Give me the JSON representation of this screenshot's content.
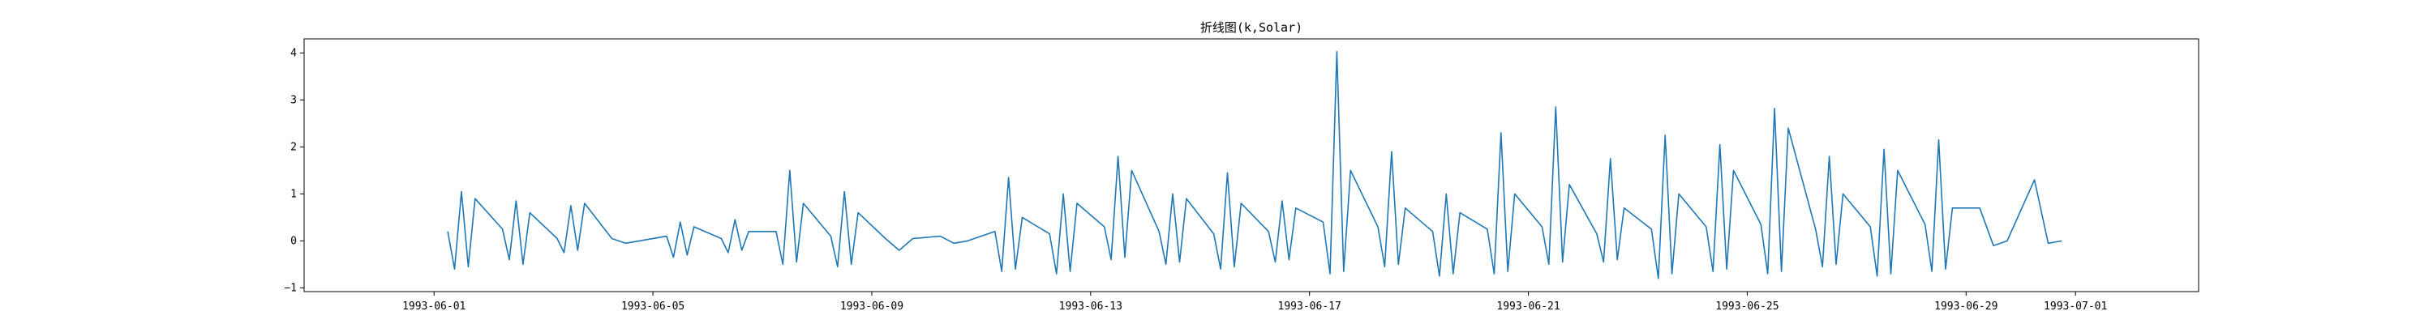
{
  "chart_data": {
    "type": "line",
    "title": "折线图(k,Solar)",
    "xlabel": "",
    "ylabel": "",
    "xlim": [
      "1993-05-29T15:00",
      "1993-07-03T06:00"
    ],
    "ylim": [
      -1.08,
      4.3
    ],
    "grid": false,
    "line_color": "#1f77b4",
    "x_ticks": [
      "1993-06-01",
      "1993-06-05",
      "1993-06-09",
      "1993-06-13",
      "1993-06-17",
      "1993-06-21",
      "1993-06-25",
      "1993-06-29",
      "1993-07-01"
    ],
    "x_tick_labels": [
      "1993-06-01",
      "1993-06-05",
      "1993-06-09",
      "1993-06-13",
      "1993-06-17",
      "1993-06-21",
      "1993-06-25",
      "1993-06-29",
      "1993-07-01"
    ],
    "y_ticks": [
      -1,
      0,
      1,
      2,
      3,
      4
    ],
    "y_tick_labels": [
      "−1",
      "0",
      "1",
      "2",
      "3",
      "4"
    ],
    "series": [
      {
        "x": [
          "1993-06-01T06:00",
          "1993-06-01T09:00",
          "1993-06-01T12:00",
          "1993-06-01T15:00",
          "1993-06-01T18:00",
          "1993-06-02T06:00",
          "1993-06-02T09:00",
          "1993-06-02T12:00",
          "1993-06-02T15:00",
          "1993-06-02T18:00",
          "1993-06-03T06:00",
          "1993-06-03T09:00",
          "1993-06-03T12:00",
          "1993-06-03T15:00",
          "1993-06-03T18:00",
          "1993-06-04T06:00",
          "1993-06-04T12:00",
          "1993-06-04T18:00",
          "1993-06-05T06:00",
          "1993-06-05T09:00",
          "1993-06-05T12:00",
          "1993-06-05T15:00",
          "1993-06-05T18:00",
          "1993-06-06T06:00",
          "1993-06-06T09:00",
          "1993-06-06T12:00",
          "1993-06-06T15:00",
          "1993-06-06T18:00",
          "1993-06-07T06:00",
          "1993-06-07T09:00",
          "1993-06-07T12:00",
          "1993-06-07T15:00",
          "1993-06-07T18:00",
          "1993-06-08T06:00",
          "1993-06-08T09:00",
          "1993-06-08T12:00",
          "1993-06-08T15:00",
          "1993-06-08T18:00",
          "1993-06-09T06:00",
          "1993-06-09T12:00",
          "1993-06-09T18:00",
          "1993-06-10T06:00",
          "1993-06-10T12:00",
          "1993-06-10T18:00",
          "1993-06-11T06:00",
          "1993-06-11T09:00",
          "1993-06-11T12:00",
          "1993-06-11T15:00",
          "1993-06-11T18:00",
          "1993-06-12T06:00",
          "1993-06-12T09:00",
          "1993-06-12T12:00",
          "1993-06-12T15:00",
          "1993-06-12T18:00",
          "1993-06-13T06:00",
          "1993-06-13T09:00",
          "1993-06-13T12:00",
          "1993-06-13T15:00",
          "1993-06-13T18:00",
          "1993-06-14T06:00",
          "1993-06-14T09:00",
          "1993-06-14T12:00",
          "1993-06-14T15:00",
          "1993-06-14T18:00",
          "1993-06-15T06:00",
          "1993-06-15T09:00",
          "1993-06-15T12:00",
          "1993-06-15T15:00",
          "1993-06-15T18:00",
          "1993-06-16T06:00",
          "1993-06-16T09:00",
          "1993-06-16T12:00",
          "1993-06-16T15:00",
          "1993-06-16T18:00",
          "1993-06-17T06:00",
          "1993-06-17T09:00",
          "1993-06-17T12:00",
          "1993-06-17T15:00",
          "1993-06-17T18:00",
          "1993-06-18T06:00",
          "1993-06-18T09:00",
          "1993-06-18T12:00",
          "1993-06-18T15:00",
          "1993-06-18T18:00",
          "1993-06-19T06:00",
          "1993-06-19T09:00",
          "1993-06-19T12:00",
          "1993-06-19T15:00",
          "1993-06-19T18:00",
          "1993-06-20T06:00",
          "1993-06-20T09:00",
          "1993-06-20T12:00",
          "1993-06-20T15:00",
          "1993-06-20T18:00",
          "1993-06-21T06:00",
          "1993-06-21T09:00",
          "1993-06-21T12:00",
          "1993-06-21T15:00",
          "1993-06-21T18:00",
          "1993-06-22T06:00",
          "1993-06-22T09:00",
          "1993-06-22T12:00",
          "1993-06-22T15:00",
          "1993-06-22T18:00",
          "1993-06-23T06:00",
          "1993-06-23T09:00",
          "1993-06-23T12:00",
          "1993-06-23T15:00",
          "1993-06-23T18:00",
          "1993-06-24T06:00",
          "1993-06-24T09:00",
          "1993-06-24T12:00",
          "1993-06-24T15:00",
          "1993-06-24T18:00",
          "1993-06-25T06:00",
          "1993-06-25T09:00",
          "1993-06-25T12:00",
          "1993-06-25T15:00",
          "1993-06-25T18:00",
          "1993-06-26T06:00",
          "1993-06-26T09:00",
          "1993-06-26T12:00",
          "1993-06-26T15:00",
          "1993-06-26T18:00",
          "1993-06-27T06:00",
          "1993-06-27T09:00",
          "1993-06-27T12:00",
          "1993-06-27T15:00",
          "1993-06-27T18:00",
          "1993-06-28T06:00",
          "1993-06-28T09:00",
          "1993-06-28T12:00",
          "1993-06-28T15:00",
          "1993-06-28T18:00",
          "1993-06-29T06:00",
          "1993-06-29T12:00",
          "1993-06-29T18:00",
          "1993-06-30T06:00",
          "1993-06-30T12:00",
          "1993-06-30T18:00"
        ],
        "y": [
          0.2,
          -0.6,
          1.05,
          -0.55,
          0.9,
          0.25,
          -0.4,
          0.85,
          -0.5,
          0.6,
          0.05,
          -0.25,
          0.75,
          -0.2,
          0.8,
          0.05,
          -0.05,
          0.0,
          0.1,
          -0.35,
          0.4,
          -0.3,
          0.3,
          0.05,
          -0.25,
          0.45,
          -0.2,
          0.2,
          0.2,
          -0.5,
          1.5,
          -0.45,
          0.8,
          0.1,
          -0.55,
          1.05,
          -0.5,
          0.6,
          0.05,
          -0.2,
          0.05,
          0.1,
          -0.05,
          0.0,
          0.2,
          -0.65,
          1.35,
          -0.6,
          0.5,
          0.15,
          -0.7,
          1.0,
          -0.65,
          0.8,
          0.3,
          -0.4,
          1.8,
          -0.35,
          1.5,
          0.2,
          -0.5,
          1.0,
          -0.45,
          0.9,
          0.15,
          -0.6,
          1.45,
          -0.55,
          0.8,
          0.2,
          -0.45,
          0.85,
          -0.4,
          0.7,
          0.4,
          -0.7,
          4.03,
          -0.65,
          1.5,
          0.3,
          -0.55,
          1.9,
          -0.5,
          0.7,
          0.2,
          -0.75,
          1.0,
          -0.7,
          0.6,
          0.25,
          -0.7,
          2.3,
          -0.65,
          1.0,
          0.3,
          -0.5,
          2.85,
          -0.45,
          1.2,
          0.15,
          -0.45,
          1.75,
          -0.4,
          0.7,
          0.25,
          -0.8,
          2.25,
          -0.7,
          1.0,
          0.3,
          -0.65,
          2.05,
          -0.6,
          1.5,
          0.35,
          -0.7,
          2.82,
          -0.65,
          2.4,
          0.25,
          -0.55,
          1.8,
          -0.5,
          1.0,
          0.3,
          -0.75,
          1.95,
          -0.7,
          1.5,
          0.35,
          -0.65,
          2.15,
          -0.6,
          0.7,
          0.7,
          -0.1,
          0.0,
          1.3,
          -0.05,
          0.0
        ]
      }
    ]
  }
}
